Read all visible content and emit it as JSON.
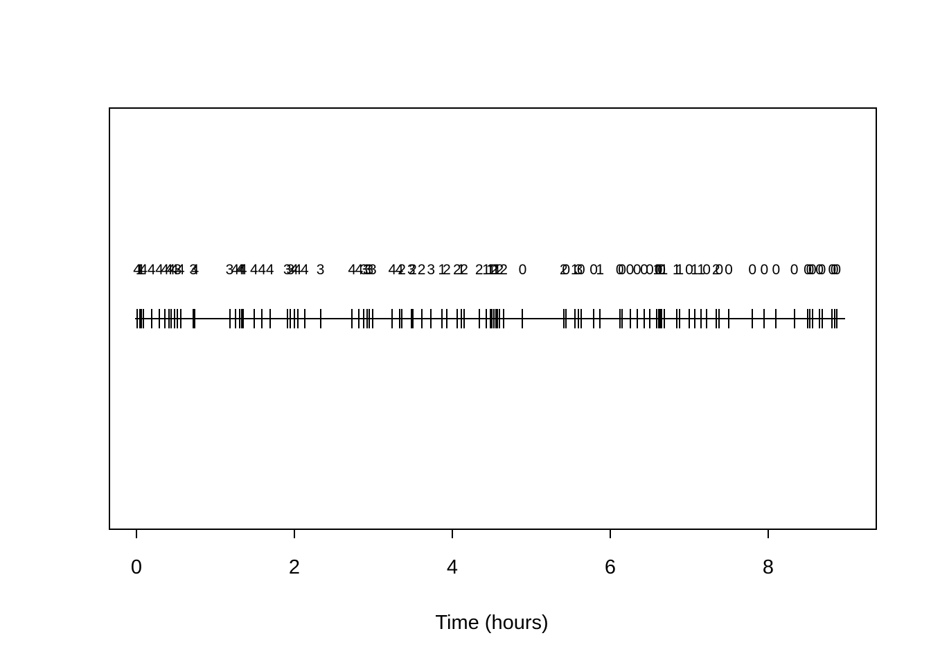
{
  "colors": {
    "foreground": "#000000",
    "background": "#ffffff"
  },
  "chart_data": {
    "type": "scatter",
    "subtype": "rug-timeline-with-mark-labels",
    "title": "",
    "xlabel": "Time (hours)",
    "ylabel": "",
    "xlim": [
      0,
      9.2
    ],
    "x_ticks": [
      0,
      2,
      4,
      6,
      8
    ],
    "grid": false,
    "legend": false,
    "description": "Event times shown as vertical rug ticks on a horizontal line spanning 0 to about 8.96 hours; a numeric mark label (0-4) is printed above each event time, overlapping where events cluster.",
    "events": {
      "times": [
        0.01,
        0.04,
        0.06,
        0.09,
        0.19,
        0.29,
        0.36,
        0.41,
        0.44,
        0.48,
        0.52,
        0.56,
        0.72,
        0.74,
        1.18,
        1.25,
        1.31,
        1.33,
        1.35,
        1.49,
        1.59,
        1.69,
        1.91,
        1.95,
        2.0,
        2.04,
        2.13,
        2.33,
        2.73,
        2.82,
        2.88,
        2.92,
        2.95,
        2.99,
        3.24,
        3.33,
        3.36,
        3.48,
        3.5,
        3.61,
        3.73,
        3.87,
        3.93,
        4.06,
        4.11,
        4.15,
        4.34,
        4.43,
        4.48,
        4.5,
        4.53,
        4.55,
        4.57,
        4.6,
        4.65,
        4.89,
        5.41,
        5.44,
        5.55,
        5.6,
        5.63,
        5.79,
        5.87,
        6.12,
        6.15,
        6.25,
        6.34,
        6.43,
        6.5,
        6.59,
        6.61,
        6.63,
        6.65,
        6.68,
        6.84,
        6.88,
        7.0,
        7.07,
        7.15,
        7.22,
        7.34,
        7.38,
        7.5,
        7.8,
        7.95,
        8.1,
        8.33,
        8.5,
        8.53,
        8.56,
        8.65,
        8.68,
        8.81,
        8.84,
        8.87
      ],
      "marks": [
        "4",
        "1",
        "1",
        "4",
        "4",
        "4",
        "4",
        "4",
        "4",
        "4",
        "3",
        "4",
        "3",
        "4",
        "3",
        "4",
        "4",
        "4",
        "4",
        "4",
        "4",
        "4",
        "3",
        "3",
        "4",
        "4",
        "4",
        "3",
        "4",
        "4",
        "3",
        "3",
        "3",
        "3",
        "4",
        "4",
        "2",
        "3",
        "2",
        "2",
        "3",
        "1",
        "2",
        "2",
        "1",
        "2",
        "2",
        "1",
        "1",
        "1",
        "2",
        "1",
        "1",
        "2",
        "2",
        "0",
        "2",
        "0",
        "1",
        "3",
        "0",
        "0",
        "1",
        "0",
        "0",
        "0",
        "0",
        "0",
        "0",
        "1",
        "0",
        "1",
        "0",
        "1",
        "1",
        "1",
        "0",
        "1",
        "1",
        "0",
        "2",
        "0",
        "0",
        "0",
        "0",
        "0",
        "0",
        "0",
        "0",
        "0",
        "0",
        "0",
        "0",
        "0",
        "0"
      ],
      "line_range": [
        0.0,
        8.96
      ]
    }
  }
}
